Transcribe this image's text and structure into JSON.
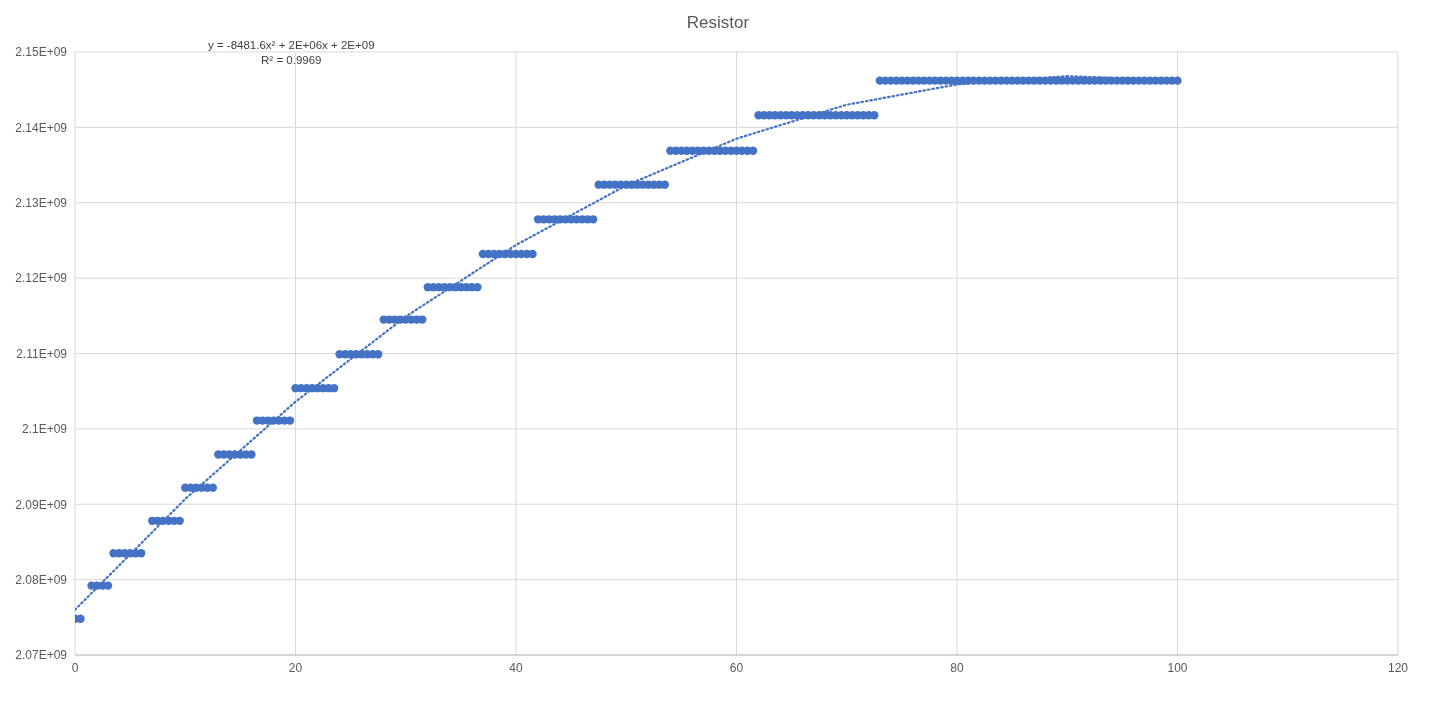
{
  "chart_data": {
    "type": "scatter",
    "title": "Resistor",
    "annotations": [
      "y = -8481.6x² + 2E+06x + 2E+09",
      "R² = 0.9969"
    ],
    "xlim": [
      0,
      120
    ],
    "xticks": [
      0,
      20,
      40,
      60,
      80,
      100,
      120
    ],
    "ylim": [
      2070000000,
      2150000000
    ],
    "yticks": [
      {
        "value": 2070000000,
        "label": "2.07E+09"
      },
      {
        "value": 2080000000,
        "label": "2.08E+09"
      },
      {
        "value": 2090000000,
        "label": "2.09E+09"
      },
      {
        "value": 2100000000,
        "label": "2.1E+09"
      },
      {
        "value": 2110000000,
        "label": "2.11E+09"
      },
      {
        "value": 2120000000,
        "label": "2.12E+09"
      },
      {
        "value": 2130000000,
        "label": "2.13E+09"
      },
      {
        "value": 2140000000,
        "label": "2.14E+09"
      },
      {
        "value": 2150000000,
        "label": "2.15E+09"
      }
    ],
    "grid": true,
    "series": [
      {
        "color": "#4472c4",
        "marker": "circle",
        "x": [
          0,
          0.5,
          1.5,
          2,
          2.5,
          3,
          3.5,
          4,
          4.5,
          5,
          5.5,
          6,
          7,
          7.5,
          8,
          8.5,
          9,
          9.5,
          10,
          10.5,
          11,
          11.5,
          12,
          12.5,
          13,
          13.5,
          14,
          14.5,
          15,
          15.5,
          16,
          16.5,
          17,
          17.5,
          18,
          18.5,
          19,
          19.5,
          20,
          20.5,
          21,
          21.5,
          22,
          22.5,
          23,
          23.5,
          24,
          24.5,
          25,
          25.5,
          26,
          26.5,
          27,
          27.5,
          28,
          28.5,
          29,
          29.5,
          30,
          30.5,
          31,
          31.5,
          32,
          32.5,
          33,
          33.5,
          34,
          34.5,
          35,
          35.5,
          36,
          36.5,
          37,
          37.5,
          38,
          38.5,
          39,
          39.5,
          40,
          40.5,
          41,
          41.5,
          42,
          42.5,
          43,
          43.5,
          44,
          44.5,
          45,
          45.5,
          46,
          46.5,
          47,
          47.5,
          48,
          48.5,
          49,
          49.5,
          50,
          50.5,
          51,
          51.5,
          52,
          52.5,
          53,
          53.5,
          54,
          54.5,
          55,
          55.5,
          56,
          56.5,
          57,
          57.5,
          58,
          58.5,
          59,
          59.5,
          60,
          60.5,
          61,
          61.5,
          62,
          62.5,
          63,
          63.5,
          64,
          64.5,
          65,
          65.5,
          66,
          66.5,
          67,
          67.5,
          68,
          68.5,
          69,
          69.5,
          70,
          70.5,
          71,
          71.5,
          72,
          72.5,
          73,
          73.5,
          74,
          74.5,
          75,
          75.5,
          76,
          76.5,
          77,
          77.5,
          78,
          78.5,
          79,
          79.5,
          80,
          80.5,
          81,
          81.5,
          82,
          82.5,
          83,
          83.5,
          84,
          84.5,
          85,
          85.5,
          86,
          86.5,
          87,
          87.5,
          88,
          88.5,
          89,
          89.5,
          90,
          90.5,
          91,
          91.5,
          92,
          92.5,
          93,
          93.5,
          94,
          94.5,
          95,
          95.5,
          96,
          96.5,
          97,
          97.5,
          98,
          98.5,
          99,
          99.5,
          100
        ],
        "values": [
          2074800000.0,
          2074800000.0,
          2079200000.0,
          2079200000.0,
          2079200000.0,
          2079200000.0,
          2083500000.0,
          2083500000.0,
          2083500000.0,
          2083500000.0,
          2083500000.0,
          2083500000.0,
          2087800000.0,
          2087800000.0,
          2087800000.0,
          2087800000.0,
          2087800000.0,
          2087800000.0,
          2092200000.0,
          2092200000.0,
          2092200000.0,
          2092200000.0,
          2092200000.0,
          2092200000.0,
          2096600000.0,
          2096600000.0,
          2096600000.0,
          2096600000.0,
          2096600000.0,
          2096600000.0,
          2096600000.0,
          2101100000.0,
          2101100000.0,
          2101100000.0,
          2101100000.0,
          2101100000.0,
          2101100000.0,
          2101100000.0,
          2105400000.0,
          2105400000.0,
          2105400000.0,
          2105400000.0,
          2105400000.0,
          2105400000.0,
          2105400000.0,
          2105400000.0,
          2109900000.0,
          2109900000.0,
          2109900000.0,
          2109900000.0,
          2109900000.0,
          2109900000.0,
          2109900000.0,
          2109900000.0,
          2114500000.0,
          2114500000.0,
          2114500000.0,
          2114500000.0,
          2114500000.0,
          2114500000.0,
          2114500000.0,
          2114500000.0,
          2118800000.0,
          2118800000.0,
          2118800000.0,
          2118800000.0,
          2118800000.0,
          2118800000.0,
          2118800000.0,
          2118800000.0,
          2118800000.0,
          2118800000.0,
          2123200000.0,
          2123200000.0,
          2123200000.0,
          2123200000.0,
          2123200000.0,
          2123200000.0,
          2123200000.0,
          2123200000.0,
          2123200000.0,
          2123200000.0,
          2127800000.0,
          2127800000.0,
          2127800000.0,
          2127800000.0,
          2127800000.0,
          2127800000.0,
          2127800000.0,
          2127800000.0,
          2127800000.0,
          2127800000.0,
          2127800000.0,
          2132400000.0,
          2132400000.0,
          2132400000.0,
          2132400000.0,
          2132400000.0,
          2132400000.0,
          2132400000.0,
          2132400000.0,
          2132400000.0,
          2132400000.0,
          2132400000.0,
          2132400000.0,
          2132400000.0,
          2136900000.0,
          2136900000.0,
          2136900000.0,
          2136900000.0,
          2136900000.0,
          2136900000.0,
          2136900000.0,
          2136900000.0,
          2136900000.0,
          2136900000.0,
          2136900000.0,
          2136900000.0,
          2136900000.0,
          2136900000.0,
          2136900000.0,
          2136900000.0,
          2141600000.0,
          2141600000.0,
          2141600000.0,
          2141600000.0,
          2141600000.0,
          2141600000.0,
          2141600000.0,
          2141600000.0,
          2141600000.0,
          2141600000.0,
          2141600000.0,
          2141600000.0,
          2141600000.0,
          2141600000.0,
          2141600000.0,
          2141600000.0,
          2141600000.0,
          2141600000.0,
          2141600000.0,
          2141600000.0,
          2141600000.0,
          2141600000.0,
          2146200000.0,
          2146200000.0,
          2146200000.0,
          2146200000.0,
          2146200000.0,
          2146200000.0,
          2146200000.0,
          2146200000.0,
          2146200000.0,
          2146200000.0,
          2146200000.0,
          2146200000.0,
          2146200000.0,
          2146200000.0,
          2146200000.0,
          2146200000.0,
          2146200000.0,
          2146200000.0,
          2146200000.0,
          2146200000.0,
          2146200000.0,
          2146200000.0,
          2146200000.0,
          2146200000.0,
          2146200000.0,
          2146200000.0,
          2146200000.0,
          2146200000.0,
          2146200000.0,
          2146200000.0,
          2146200000.0,
          2146200000.0,
          2146200000.0,
          2146200000.0,
          2146200000.0,
          2146200000.0,
          2146200000.0,
          2146200000.0,
          2146200000.0,
          2146200000.0,
          2146200000.0,
          2146200000.0,
          2146200000.0,
          2146200000.0,
          2146200000.0,
          2146200000.0,
          2146200000.0,
          2146200000.0,
          2146200000.0,
          2146200000.0,
          2146200000.0,
          2146200000.0,
          2146200000.0,
          2146200000.0,
          2146200000.0
        ]
      },
      {
        "type": "line",
        "color": "#4472c4",
        "line_style": "dotted",
        "marker": "none",
        "x": [
          0,
          10,
          20,
          30,
          40,
          50,
          60,
          70,
          80,
          90,
          100
        ],
        "values": [
          2076000000.0,
          2090700000.0,
          2103600000.0,
          2114900000.0,
          2124400000.0,
          2132300000.0,
          2138500000.0,
          2143000000.0,
          2145700000.0,
          2146800000.0,
          2146200000.0
        ]
      }
    ]
  }
}
